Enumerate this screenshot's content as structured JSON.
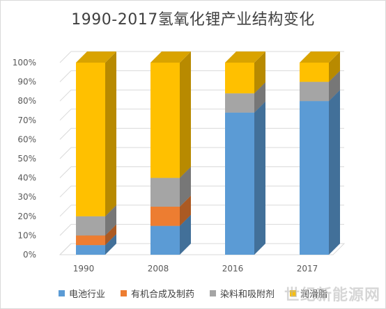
{
  "chart_data": {
    "type": "bar",
    "stacked": true,
    "three_d": true,
    "title": "1990-2017氢氧化锂产业结构变化",
    "categories": [
      "1990",
      "2008",
      "2016",
      "2017"
    ],
    "series": [
      {
        "name": "电池行业",
        "color": "#5b9bd5",
        "values": [
          5,
          15,
          74,
          80
        ]
      },
      {
        "name": "有机合成及制药",
        "color": "#ed7d31",
        "values": [
          5,
          10,
          0,
          0
        ]
      },
      {
        "name": "染料和吸附剂",
        "color": "#a5a5a5",
        "values": [
          10,
          15,
          10,
          10
        ]
      },
      {
        "name": "润滑脂",
        "color": "#ffc000",
        "values": [
          80,
          60,
          16,
          10
        ]
      }
    ],
    "ylim": [
      0,
      100
    ],
    "yticks": [
      "0%",
      "10%",
      "20%",
      "30%",
      "40%",
      "50%",
      "60%",
      "70%",
      "80%",
      "90%",
      "100%"
    ],
    "grid": true,
    "legend": "bottom"
  },
  "watermark": "世纪新能源网"
}
